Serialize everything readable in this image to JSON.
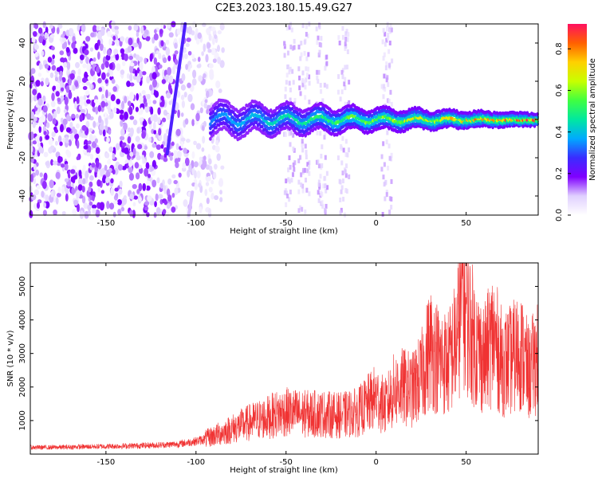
{
  "figure_title": "C2E3.2023.180.15.49.G27",
  "colors": {
    "snr_line": "#f03232",
    "colormap": [
      "#ffffff",
      "#e0d0ff",
      "#8000ff",
      "#3a2cff",
      "#00aaff",
      "#00e8a0",
      "#40ff40",
      "#c8ff00",
      "#ffd000",
      "#ff6000",
      "#ff1060"
    ]
  },
  "chart_data": [
    {
      "type": "heatmap",
      "panel": "spectrogram",
      "xlabel": "Height of straight line (km)",
      "ylabel": "Frequency (Hz)",
      "xlim": [
        -192,
        90
      ],
      "ylim": [
        -50,
        50
      ],
      "x_ticks": [
        -150,
        -100,
        -50,
        0,
        50
      ],
      "y_ticks": [
        -40,
        -20,
        0,
        20,
        40
      ],
      "colorbar": {
        "label": "Normalized spectral amplitude",
        "range": [
          0.0,
          0.92
        ],
        "ticks": [
          0.0,
          0.2,
          0.4,
          0.6,
          0.8
        ]
      },
      "features": [
        {
          "kind": "main_signal_band",
          "x_range": [
            -92,
            90
          ],
          "freq_center": 0,
          "freq_halfwidth_start": 8,
          "freq_halfwidth_end": 3,
          "peak_amplitude": 0.9
        },
        {
          "kind": "diagonal_streak",
          "x_start": -116,
          "freq_start": -18,
          "x_end": -106,
          "freq_end": 50,
          "amplitude": 0.25
        },
        {
          "kind": "diagonal_streak",
          "x_start": -104,
          "freq_start": -50,
          "x_end": -102,
          "freq_end": -38,
          "amplitude": 0.1
        },
        {
          "kind": "noise_columns",
          "x_centers": [
            -48,
            -40,
            -30,
            -18,
            6
          ],
          "amplitude": 0.05
        },
        {
          "kind": "dense_noise_region",
          "x_range": [
            -192,
            -85
          ],
          "amplitude": 0.08
        }
      ]
    },
    {
      "type": "line",
      "panel": "snr",
      "xlabel": "Height of straight line (km)",
      "ylabel": "SNR (10 * v/v)",
      "xlim": [
        -192,
        90
      ],
      "ylim": [
        0,
        5700
      ],
      "x_ticks": [
        -150,
        -100,
        -50,
        0,
        50
      ],
      "y_ticks": [
        1000,
        2000,
        3000,
        4000,
        5000
      ],
      "series": [
        {
          "x": [
            -192,
            -180,
            -160,
            -140,
            -120,
            -110,
            -100,
            -95,
            -90,
            -80,
            -70,
            -60,
            -55,
            -50,
            -40,
            -30,
            -20,
            -10,
            0,
            5,
            10,
            15,
            20,
            25,
            30,
            35,
            40,
            45,
            48,
            50,
            55,
            60,
            65,
            70,
            75,
            80,
            85,
            90
          ],
          "y": [
            200,
            200,
            220,
            240,
            270,
            300,
            380,
            450,
            550,
            750,
            950,
            1100,
            1200,
            1250,
            1200,
            1200,
            1150,
            1250,
            1700,
            1400,
            1900,
            2000,
            1900,
            2300,
            3200,
            2800,
            2700,
            3400,
            5000,
            4200,
            3300,
            2800,
            3500,
            2700,
            2800,
            3100,
            2400,
            3000
          ]
        }
      ]
    }
  ]
}
